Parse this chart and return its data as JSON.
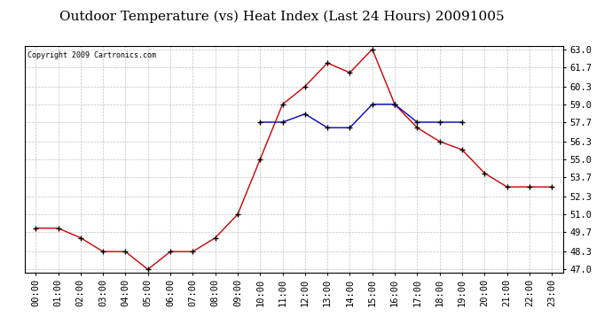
{
  "title": "Outdoor Temperature (vs) Heat Index (Last 24 Hours) 20091005",
  "copyright": "Copyright 2009 Cartronics.com",
  "x_labels": [
    "00:00",
    "01:00",
    "02:00",
    "03:00",
    "04:00",
    "05:00",
    "06:00",
    "07:00",
    "08:00",
    "09:00",
    "10:00",
    "11:00",
    "12:00",
    "13:00",
    "14:00",
    "15:00",
    "16:00",
    "17:00",
    "18:00",
    "19:00",
    "20:00",
    "21:00",
    "22:00",
    "23:00"
  ],
  "temp_data": [
    50.0,
    50.0,
    49.3,
    48.3,
    48.3,
    47.0,
    48.3,
    48.3,
    49.3,
    51.0,
    55.0,
    59.0,
    60.3,
    62.0,
    61.3,
    63.0,
    59.0,
    57.3,
    56.3,
    55.7,
    54.0,
    53.0,
    53.0,
    53.0
  ],
  "heat_data": [
    null,
    null,
    null,
    null,
    null,
    null,
    null,
    null,
    null,
    null,
    57.7,
    57.7,
    58.3,
    57.3,
    57.3,
    59.0,
    59.0,
    57.7,
    57.7,
    57.7,
    null,
    null,
    null,
    null
  ],
  "temp_color": "#cc0000",
  "heat_color": "#0000cc",
  "grid_color": "#bbbbbb",
  "bg_color": "#ffffff",
  "plot_bg_color": "#ffffff",
  "y_min": 47.0,
  "y_max": 63.0,
  "y_ticks": [
    47.0,
    48.3,
    49.7,
    51.0,
    52.3,
    53.7,
    55.0,
    56.3,
    57.7,
    59.0,
    60.3,
    61.7,
    63.0
  ],
  "title_fontsize": 11,
  "copyright_fontsize": 6,
  "tick_fontsize": 7.5
}
